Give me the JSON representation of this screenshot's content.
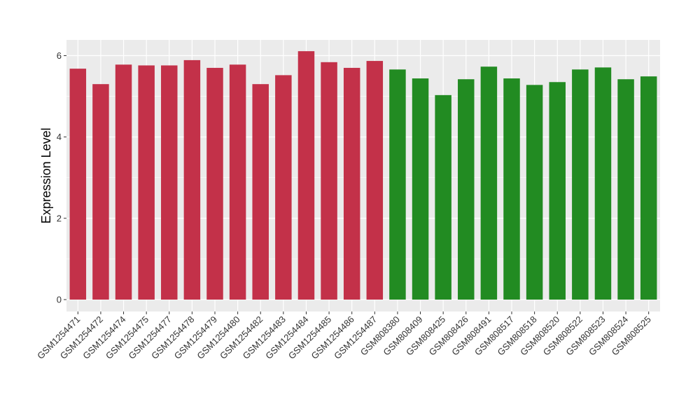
{
  "chart_data": {
    "type": "bar",
    "title": "",
    "xlabel": "",
    "ylabel": "Expression Level",
    "ylim": [
      0,
      6.25
    ],
    "y_ticks": [
      0,
      2,
      4,
      6
    ],
    "grid": true,
    "legend": "none",
    "panel_background": "#EBEBEB",
    "colors": {
      "group_1": "#C33149",
      "group_2": "#228B22"
    },
    "categories": [
      "GSM1254471",
      "GSM1254472",
      "GSM1254474",
      "GSM1254475",
      "GSM1254477",
      "GSM1254478",
      "GSM1254479",
      "GSM1254480",
      "GSM1254482",
      "GSM1254483",
      "GSM1254484",
      "GSM1254485",
      "GSM1254486",
      "GSM1254487",
      "GSM808380",
      "GSM808409",
      "GSM808425",
      "GSM808426",
      "GSM808491",
      "GSM808517",
      "GSM808518",
      "GSM808520",
      "GSM808522",
      "GSM808523",
      "GSM808524",
      "GSM808525"
    ],
    "values": [
      5.68,
      5.3,
      5.78,
      5.76,
      5.76,
      5.89,
      5.7,
      5.78,
      5.3,
      5.52,
      6.11,
      5.84,
      5.7,
      5.87,
      5.66,
      5.44,
      5.03,
      5.42,
      5.73,
      5.44,
      5.28,
      5.35,
      5.66,
      5.71,
      5.42,
      5.49
    ],
    "groups": [
      "group_1",
      "group_1",
      "group_1",
      "group_1",
      "group_1",
      "group_1",
      "group_1",
      "group_1",
      "group_1",
      "group_1",
      "group_1",
      "group_1",
      "group_1",
      "group_1",
      "group_2",
      "group_2",
      "group_2",
      "group_2",
      "group_2",
      "group_2",
      "group_2",
      "group_2",
      "group_2",
      "group_2",
      "group_2",
      "group_2"
    ]
  }
}
